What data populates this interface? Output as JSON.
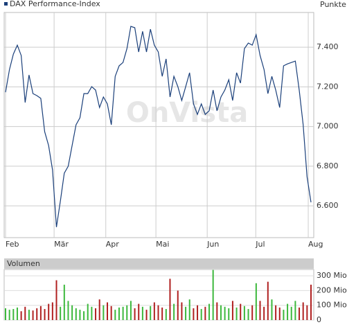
{
  "chart_data": [
    {
      "type": "line",
      "title": "DAX Performance-Index",
      "y_axis_label": "Punkte",
      "watermark": "OnVista",
      "color": "#1a3f7a",
      "values": [
        7173,
        7288,
        7365,
        7410,
        7358,
        7121,
        7260,
        7166,
        7156,
        7142,
        6974,
        6904,
        6782,
        6493,
        6625,
        6765,
        6800,
        6904,
        7009,
        7044,
        7166,
        7166,
        7201,
        7184,
        7096,
        7149,
        7114,
        7009,
        7253,
        7306,
        7323,
        7393,
        7505,
        7498,
        7376,
        7480,
        7376,
        7491,
        7410,
        7376,
        7253,
        7341,
        7149,
        7253,
        7201,
        7131,
        7201,
        7271,
        7114,
        7061,
        7114,
        7061,
        7079,
        7184,
        7079,
        7149,
        7184,
        7236,
        7131,
        7271,
        7219,
        7393,
        7421,
        7410,
        7463,
        7358,
        7288,
        7166,
        7253,
        7184,
        7096,
        7306,
        7316,
        7323,
        7330,
        7184,
        7009,
        6747,
        6618
      ],
      "xlim": [
        0,
        78
      ],
      "xticks": [
        {
          "value": 0,
          "label": "Feb"
        },
        {
          "value": 12.4,
          "label": "Mär"
        },
        {
          "value": 25.6,
          "label": "Apr"
        },
        {
          "value": 38.4,
          "label": "Mai"
        },
        {
          "value": 51.5,
          "label": "Jun"
        },
        {
          "value": 63.9,
          "label": "Jul"
        },
        {
          "value": 77.3,
          "label": "Aug"
        }
      ],
      "ylim": [
        6440,
        7575
      ],
      "yticks": [
        {
          "value": 6600,
          "label": "6.600"
        },
        {
          "value": 6800,
          "label": "6.800"
        },
        {
          "value": 7000,
          "label": "7.000"
        },
        {
          "value": 7200,
          "label": "7.200"
        },
        {
          "value": 7400,
          "label": "7.400"
        }
      ],
      "grid": true
    },
    {
      "type": "bar",
      "title": "Volumen",
      "up_color": "#3cb83c",
      "down_color": "#b02020",
      "values": [
        80,
        70,
        75,
        85,
        60,
        90,
        70,
        65,
        80,
        95,
        75,
        110,
        120,
        270,
        90,
        240,
        130,
        100,
        80,
        70,
        60,
        110,
        90,
        80,
        140,
        100,
        120,
        95,
        70,
        85,
        90,
        100,
        130,
        80,
        110,
        90,
        70,
        95,
        120,
        100,
        85,
        75,
        280,
        110,
        200,
        120,
        90,
        140,
        80,
        100,
        75,
        90,
        110,
        340,
        120,
        100,
        90,
        80,
        130,
        85,
        110,
        95,
        75,
        100,
        250,
        130,
        90,
        260,
        140,
        100,
        85,
        70,
        110,
        90,
        130,
        85,
        120,
        100,
        240
      ],
      "xlim": [
        0,
        78
      ],
      "ylim": [
        0,
        343
      ],
      "yticks": [
        0,
        {
          "value": 100,
          "label": "100 Mio."
        },
        {
          "value": 200,
          "label": "200 Mio."
        },
        {
          "value": 300,
          "label": "300 Mio."
        }
      ]
    }
  ]
}
